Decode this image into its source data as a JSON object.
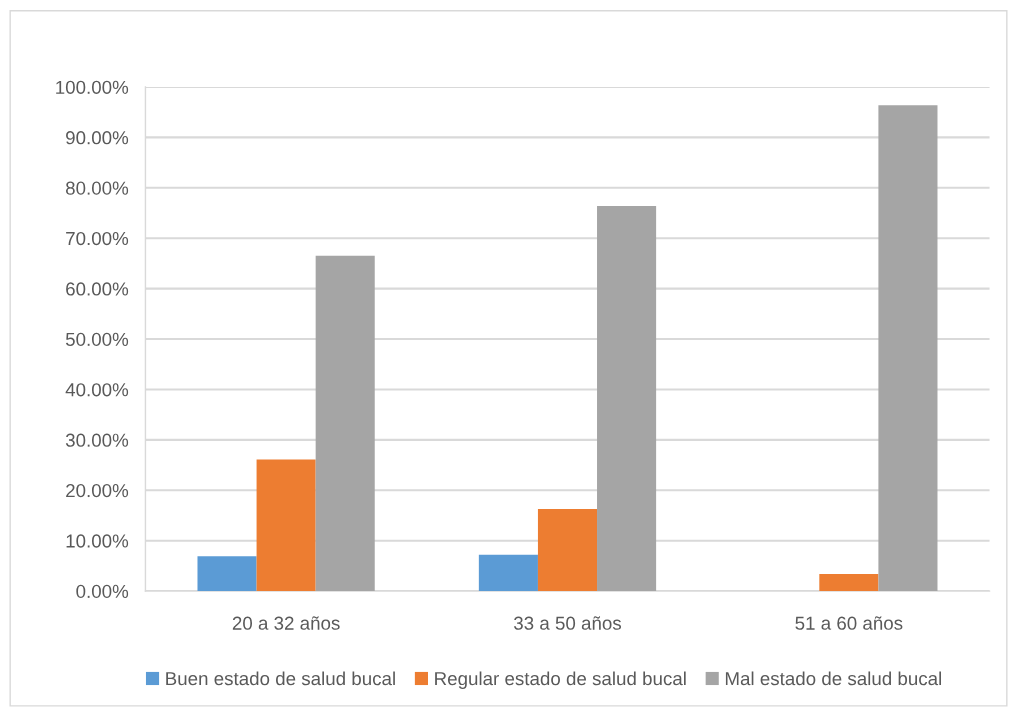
{
  "chart_data": {
    "type": "bar",
    "categories": [
      "20 a 32 años",
      "33 a 50 años",
      "51 a 60 años"
    ],
    "series": [
      {
        "name": "Buen estado de salud bucal",
        "color": "#5b9bd5",
        "values": [
          6.9,
          7.2,
          0
        ]
      },
      {
        "name": "Regular estado de salud bucal",
        "color": "#ed7d31",
        "values": [
          26.1,
          16.3,
          3.4
        ]
      },
      {
        "name": "Mal estado de salud bucal",
        "color": "#a5a5a5",
        "values": [
          66.5,
          76.4,
          96.4
        ]
      }
    ],
    "ylim": [
      0,
      100
    ],
    "yticks": [
      {
        "value": 0,
        "label": "0.00%"
      },
      {
        "value": 10,
        "label": "10.00%"
      },
      {
        "value": 20,
        "label": "20.00%"
      },
      {
        "value": 30,
        "label": "30.00%"
      },
      {
        "value": 40,
        "label": "40.00%"
      },
      {
        "value": 50,
        "label": "50.00%"
      },
      {
        "value": 60,
        "label": "60.00%"
      },
      {
        "value": 70,
        "label": "70.00%"
      },
      {
        "value": 80,
        "label": "80.00%"
      },
      {
        "value": 90,
        "label": "90.00%"
      },
      {
        "value": 100,
        "label": "100.00%"
      }
    ],
    "grid": "y",
    "legend": "bottom"
  }
}
